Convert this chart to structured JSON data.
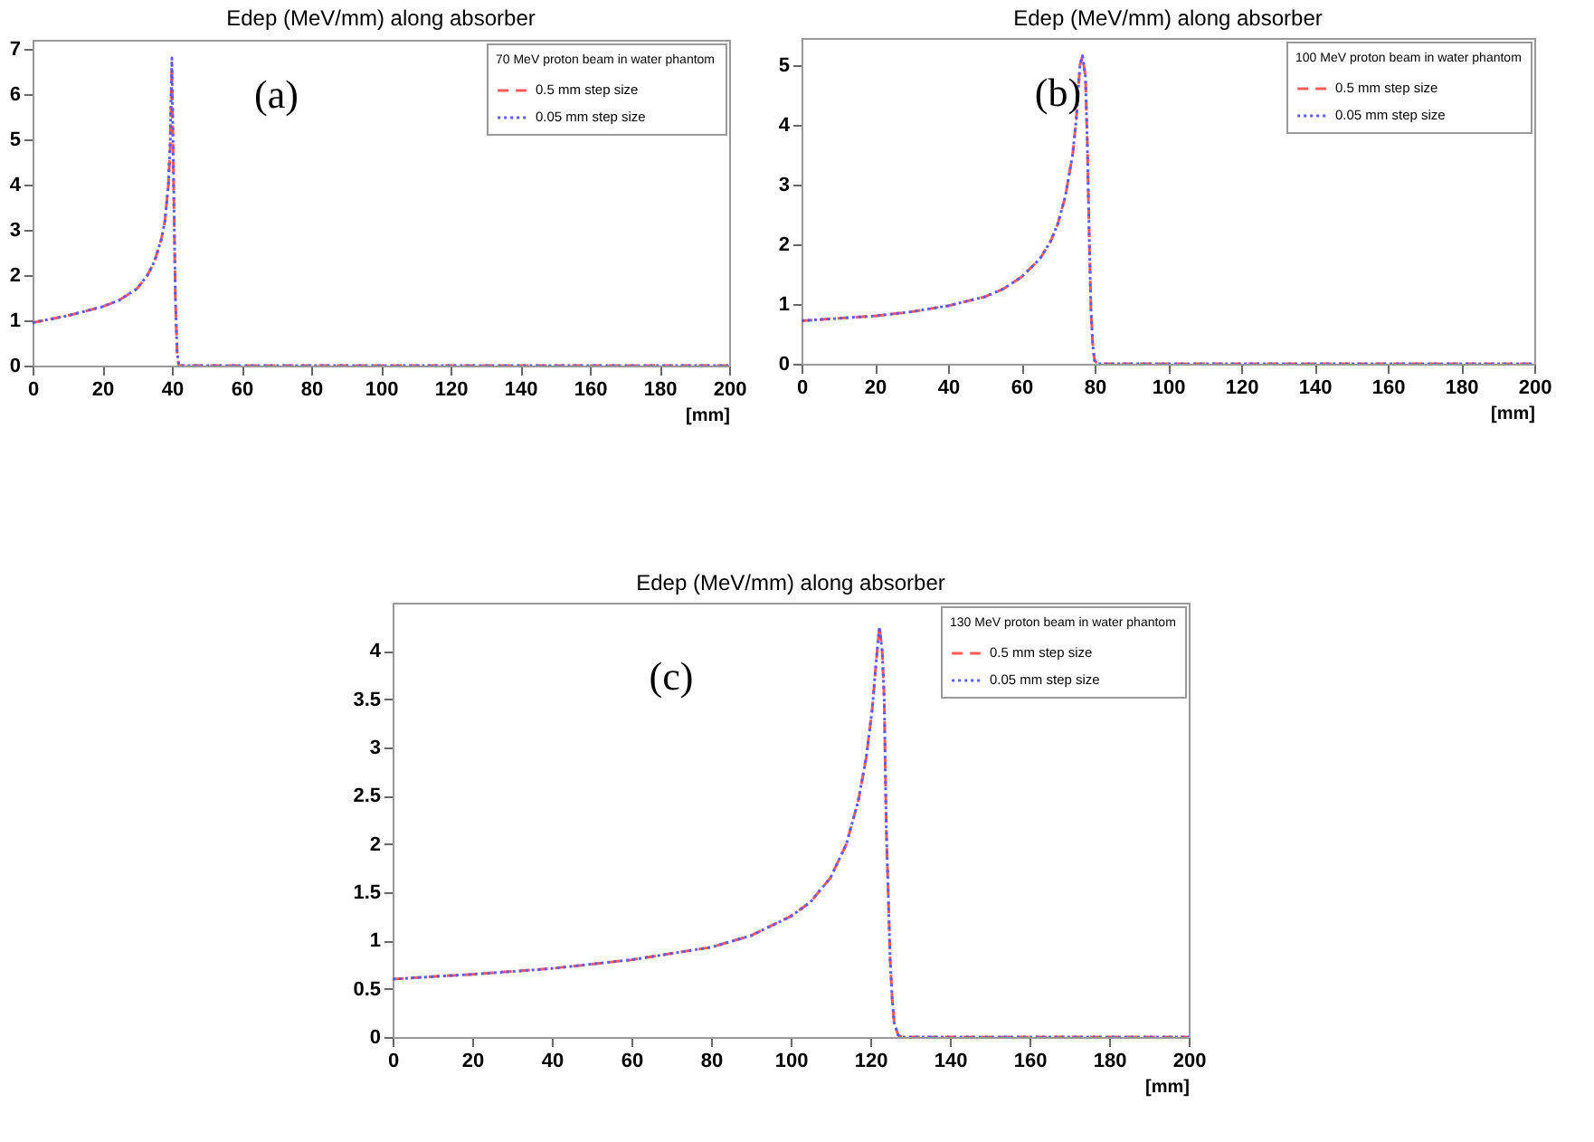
{
  "chart_data": [
    {
      "type": "line",
      "title": "Edep (MeV/mm) along absorber",
      "xlabel": "[mm]",
      "legend_title": "70 MeV proton beam in water phantom",
      "annotations": [
        "(a)"
      ],
      "x": [
        0,
        10,
        20,
        25,
        30,
        33,
        35,
        37,
        38,
        39,
        39.5,
        40,
        40.5,
        41,
        41.5,
        42,
        200
      ],
      "series": [
        {
          "name": "0.5 mm step size",
          "color": "#ff5a5a",
          "line_style": "dashed",
          "values": [
            0.95,
            1.1,
            1.3,
            1.45,
            1.7,
            2.0,
            2.3,
            2.8,
            3.2,
            4.0,
            4.8,
            6.6,
            4.0,
            1.5,
            0.3,
            0,
            0
          ]
        },
        {
          "name": "0.05 mm step size",
          "color": "#5a5aff",
          "line_style": "dotted",
          "values": [
            0.95,
            1.1,
            1.3,
            1.45,
            1.7,
            2.0,
            2.3,
            2.8,
            3.2,
            4.0,
            4.9,
            6.8,
            4.0,
            1.5,
            0.3,
            0,
            0
          ]
        }
      ],
      "xlim": [
        0,
        200
      ],
      "xticks": [
        0,
        20,
        40,
        60,
        80,
        100,
        120,
        140,
        160,
        180,
        200
      ],
      "ylim": [
        0,
        7.2
      ],
      "yticks": [
        0,
        1,
        2,
        3,
        4,
        5,
        6,
        7
      ],
      "grid": false,
      "legend": "top right"
    },
    {
      "type": "line",
      "title": "Edep (MeV/mm) along absorber",
      "xlabel": "[mm]",
      "legend_title": "100 MeV proton beam in water phantom",
      "annotations": [
        "(b)"
      ],
      "x": [
        0,
        10,
        20,
        30,
        40,
        50,
        55,
        60,
        65,
        68,
        70,
        72,
        74,
        75,
        76,
        76.7,
        77.5,
        78,
        78.5,
        79,
        79.5,
        80,
        81,
        200
      ],
      "series": [
        {
          "name": "0.5 mm step size",
          "color": "#ff5a5a",
          "line_style": "dashed",
          "values": [
            0.72,
            0.76,
            0.8,
            0.87,
            0.97,
            1.12,
            1.25,
            1.45,
            1.75,
            2.05,
            2.35,
            2.8,
            3.5,
            4.1,
            5.0,
            5.15,
            4.8,
            3.7,
            2.2,
            0.9,
            0.3,
            0.05,
            0,
            0
          ]
        },
        {
          "name": "0.05 mm step size",
          "color": "#5a5aff",
          "line_style": "dotted",
          "values": [
            0.72,
            0.76,
            0.8,
            0.87,
            0.97,
            1.12,
            1.25,
            1.45,
            1.75,
            2.05,
            2.35,
            2.8,
            3.5,
            4.1,
            5.0,
            5.15,
            4.8,
            3.7,
            2.2,
            0.9,
            0.3,
            0.05,
            0,
            0
          ]
        }
      ],
      "xlim": [
        0,
        200
      ],
      "xticks": [
        0,
        20,
        40,
        60,
        80,
        100,
        120,
        140,
        160,
        180,
        200
      ],
      "ylim": [
        0,
        5.45
      ],
      "yticks": [
        0,
        1,
        2,
        3,
        4,
        5
      ],
      "grid": false,
      "legend": "top right"
    },
    {
      "type": "line",
      "title": "Edep (MeV/mm) along absorber",
      "xlabel": "[mm]",
      "legend_title": "130 MeV proton beam in water phantom",
      "annotations": [
        "(c)"
      ],
      "x": [
        0,
        20,
        40,
        60,
        80,
        90,
        100,
        105,
        110,
        114,
        117,
        119,
        120.5,
        121.5,
        122.3,
        123,
        123.5,
        124,
        124.5,
        125,
        125.5,
        126,
        127,
        128,
        200
      ],
      "series": [
        {
          "name": "0.5 mm step size",
          "color": "#ff5a5a",
          "line_style": "dashed",
          "values": [
            0.6,
            0.65,
            0.71,
            0.8,
            0.93,
            1.05,
            1.25,
            1.4,
            1.65,
            2.0,
            2.45,
            2.9,
            3.4,
            3.9,
            4.25,
            4.0,
            3.5,
            2.2,
            1.5,
            0.8,
            0.4,
            0.15,
            0.02,
            0,
            0
          ]
        },
        {
          "name": "0.05 mm step size",
          "color": "#5a5aff",
          "line_style": "dotted",
          "values": [
            0.6,
            0.65,
            0.71,
            0.8,
            0.93,
            1.05,
            1.25,
            1.4,
            1.65,
            2.0,
            2.45,
            2.9,
            3.4,
            3.9,
            4.25,
            4.0,
            3.5,
            2.2,
            1.5,
            0.8,
            0.4,
            0.15,
            0.02,
            0,
            0
          ]
        }
      ],
      "xlim": [
        0,
        200
      ],
      "xticks": [
        0,
        20,
        40,
        60,
        80,
        100,
        120,
        140,
        160,
        180,
        200
      ],
      "ylim": [
        0,
        4.5
      ],
      "yticks": [
        0,
        0.5,
        1,
        1.5,
        2,
        2.5,
        3,
        3.5,
        4
      ],
      "grid": false,
      "legend": "top right"
    }
  ]
}
